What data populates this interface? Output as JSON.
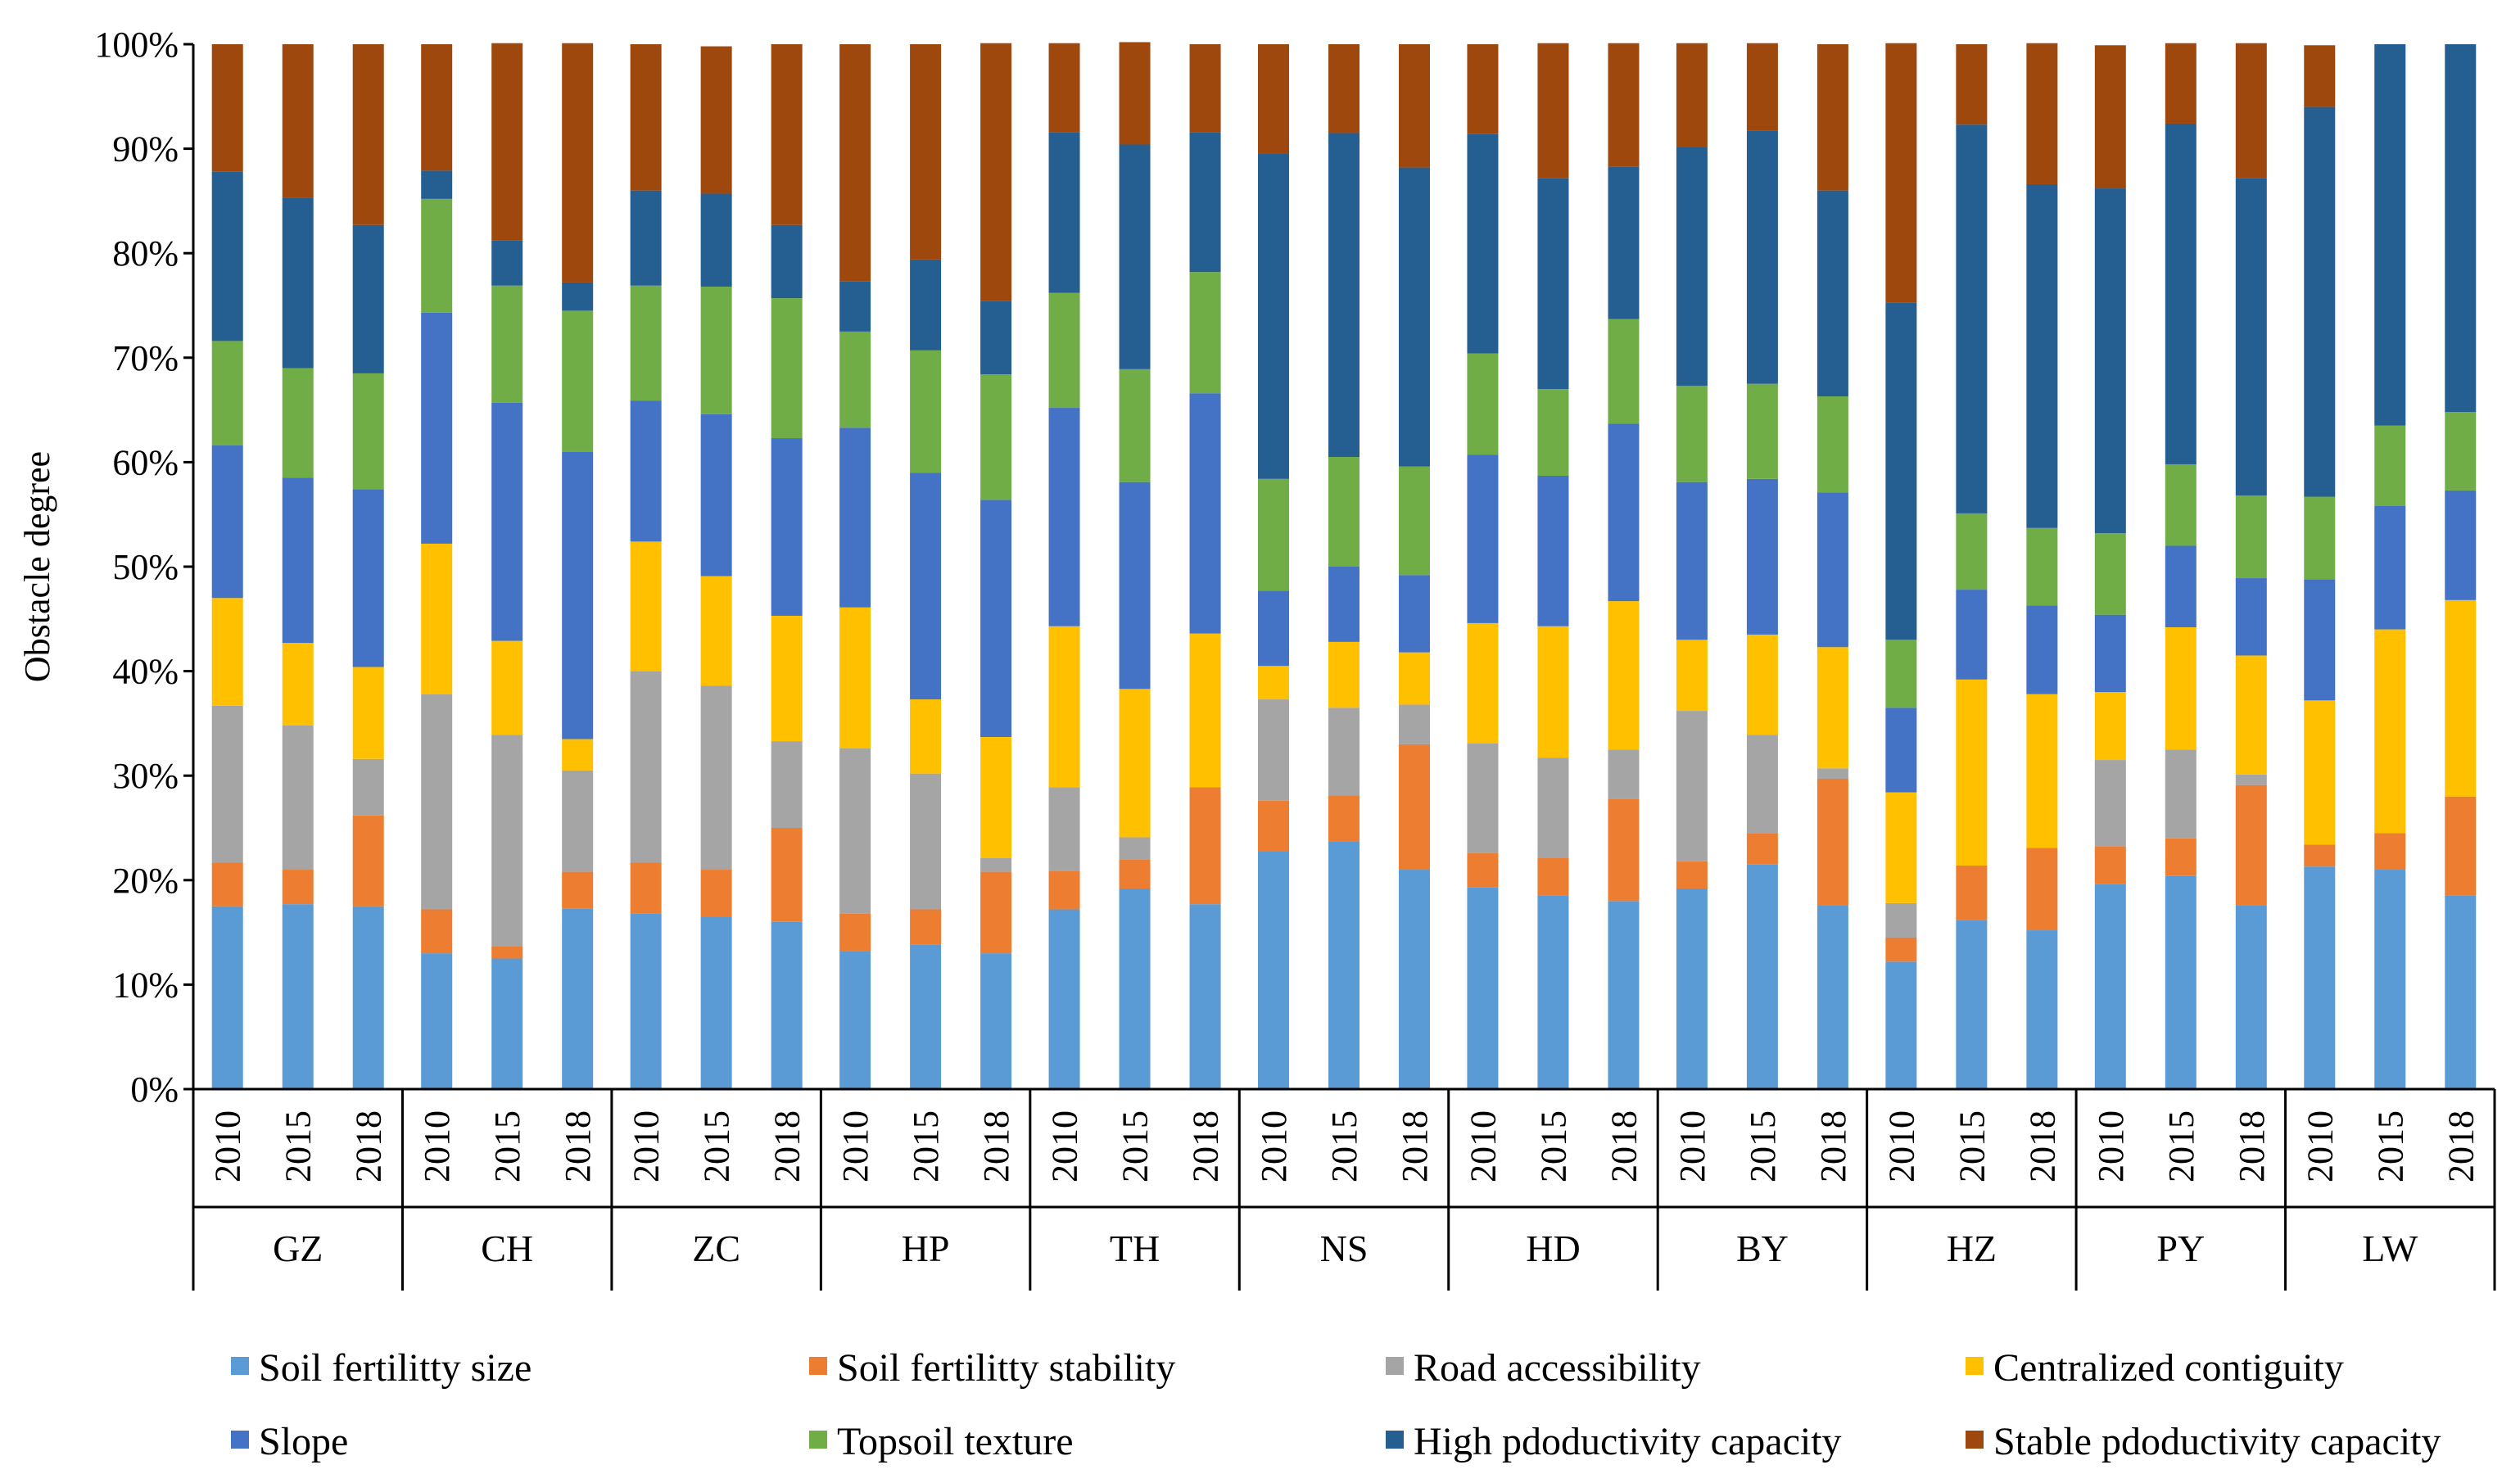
{
  "chart_data": {
    "type": "bar",
    "stacked": true,
    "normalized": true,
    "ylabel": "Obstacle degree",
    "ylim": [
      0,
      100
    ],
    "yticks": [
      "0%",
      "10%",
      "20%",
      "30%",
      "40%",
      "50%",
      "60%",
      "70%",
      "80%",
      "90%",
      "100%"
    ],
    "years": [
      "2010",
      "2015",
      "2018"
    ],
    "groups": [
      "GZ",
      "CH",
      "ZC",
      "HP",
      "TH",
      "NS",
      "HD",
      "BY",
      "HZ",
      "PY",
      "LW"
    ],
    "legend_position": "bottom",
    "series": [
      {
        "name": "Soil fertilitty size",
        "color": "#5B9BD5",
        "values": [
          17.5,
          17.7,
          17.5,
          13,
          12.5,
          17.3,
          16.8,
          16.5,
          16,
          13.2,
          13.8,
          13,
          17.2,
          19.2,
          17.7,
          22.8,
          23.7,
          21,
          19.3,
          18.5,
          18,
          19.2,
          21.5,
          17.6,
          12.2,
          16.2,
          15.2,
          19.6,
          20.4,
          17.6,
          21.3,
          21,
          18.5
        ]
      },
      {
        "name": "Soil fertilitty stability",
        "color": "#ED7D31",
        "values": [
          4.2,
          3.3,
          8.7,
          4.2,
          1.2,
          3.5,
          4.9,
          4.5,
          9,
          3.6,
          3.4,
          7.8,
          3.7,
          2.8,
          11.2,
          4.8,
          4.4,
          12,
          3.3,
          3.6,
          9.8,
          2.6,
          3,
          12.1,
          2.3,
          5.2,
          7.9,
          3.6,
          3.6,
          11.5,
          2.1,
          3.5,
          9.5
        ]
      },
      {
        "name": "Road accessibility",
        "color": "#A5A5A5",
        "values": [
          15,
          13.8,
          5.4,
          20.6,
          20.2,
          9.7,
          18.3,
          17.6,
          8.3,
          15.8,
          13,
          1.3,
          8,
          2.1,
          0,
          9.7,
          8.4,
          3.8,
          10.5,
          9.6,
          4.7,
          14.4,
          9.4,
          1,
          3.3,
          0,
          0,
          8.3,
          8.5,
          1,
          0,
          0,
          0
        ]
      },
      {
        "name": "Centralized contiguity",
        "color": "#FFC000",
        "values": [
          10.3,
          7.9,
          8.8,
          14.4,
          9,
          3,
          12.4,
          10.5,
          12,
          13.5,
          7.1,
          11.6,
          15.4,
          14.2,
          14.7,
          3.2,
          6.3,
          5,
          11.5,
          12.6,
          14.2,
          6.8,
          9.6,
          11.6,
          10.6,
          17.8,
          14.7,
          6.5,
          11.7,
          11.4,
          13.8,
          19.5,
          18.8
        ]
      },
      {
        "name": "Slope",
        "color": "#4472C4",
        "values": [
          14.6,
          15.8,
          17,
          22.1,
          22.8,
          27.5,
          13.5,
          15.5,
          17,
          17.2,
          21.7,
          22.7,
          20.9,
          19.8,
          23,
          7.2,
          7.2,
          7.4,
          16.1,
          14.4,
          17,
          15.1,
          14.9,
          14.8,
          8.1,
          8.6,
          8.5,
          7.4,
          7.8,
          7.4,
          11.6,
          11.8,
          10.5
        ]
      },
      {
        "name": "Topsoil texture",
        "color": "#70AD47",
        "values": [
          10,
          10.5,
          11.1,
          10.9,
          11.2,
          13.5,
          11,
          12.2,
          13.4,
          9.2,
          11.7,
          12,
          11,
          10.8,
          11.6,
          10.7,
          10.5,
          10.4,
          9.7,
          8.3,
          10,
          9.2,
          9.1,
          9.2,
          6.5,
          7.3,
          7.4,
          7.8,
          7.8,
          7.9,
          7.9,
          7.7,
          7.5
        ]
      },
      {
        "name": "High pdoductivity capacity",
        "color": "#255E91",
        "values": [
          16.2,
          16.3,
          14.2,
          2.7,
          4.3,
          2.7,
          9.1,
          8.9,
          7,
          4.8,
          8.7,
          7,
          15.4,
          21.5,
          13.4,
          31.1,
          31,
          28.6,
          21,
          20.2,
          14.6,
          22.9,
          24.2,
          19.7,
          32.3,
          37.2,
          32.9,
          33,
          32.6,
          30.4,
          37.3,
          36.5,
          35.2
        ]
      },
      {
        "name": "Stable pdoductivity capacity",
        "color": "#9E480E",
        "values": [
          12.2,
          14.7,
          17.3,
          12.1,
          18.9,
          22.9,
          14,
          14.1,
          17.3,
          22.7,
          20.6,
          24.7,
          8.5,
          9.8,
          8.4,
          10.5,
          8.5,
          11.8,
          8.6,
          12.9,
          11.8,
          9.9,
          8.4,
          14,
          24.8,
          7.7,
          13.5,
          13.7,
          7.7,
          12.9,
          5.9,
          0,
          0
        ]
      }
    ]
  }
}
